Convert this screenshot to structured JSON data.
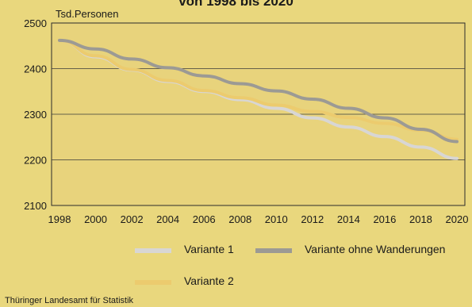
{
  "title": "von 1998 bis 2020",
  "source": "Thüringer Landesamt für Statistik",
  "chart_data": {
    "type": "line",
    "ylabel": "Tsd.Personen",
    "xlabel": "",
    "x": [
      1998,
      2000,
      2002,
      2004,
      2006,
      2008,
      2010,
      2012,
      2014,
      2016,
      2018,
      2020
    ],
    "xticks": [
      "1998",
      "2000",
      "2002",
      "2004",
      "2006",
      "2008",
      "2010",
      "2012",
      "2014",
      "2016",
      "2018",
      "2020"
    ],
    "ylim": [
      2100,
      2500
    ],
    "yticks": [
      "2100",
      "2200",
      "2300",
      "2400",
      "2500"
    ],
    "grid": true,
    "legend": "bottom",
    "series": [
      {
        "name": "Variante 1",
        "color": "#d8d6d4",
        "values": [
          2462,
          2426,
          2397,
          2372,
          2350,
          2332,
          2313,
          2292,
          2272,
          2251,
          2228,
          2203
        ]
      },
      {
        "name": "Variante ohne Wanderungen",
        "color": "#9c9a94",
        "values": [
          2462,
          2443,
          2421,
          2402,
          2384,
          2367,
          2351,
          2333,
          2313,
          2292,
          2267,
          2240
        ]
      },
      {
        "name": "Variante 2",
        "color": "#eccb6e",
        "values": [
          2462,
          2428,
          2398,
          2374,
          2352,
          2336,
          2320,
          2306,
          2293,
          2280,
          2265,
          2245
        ]
      }
    ]
  }
}
